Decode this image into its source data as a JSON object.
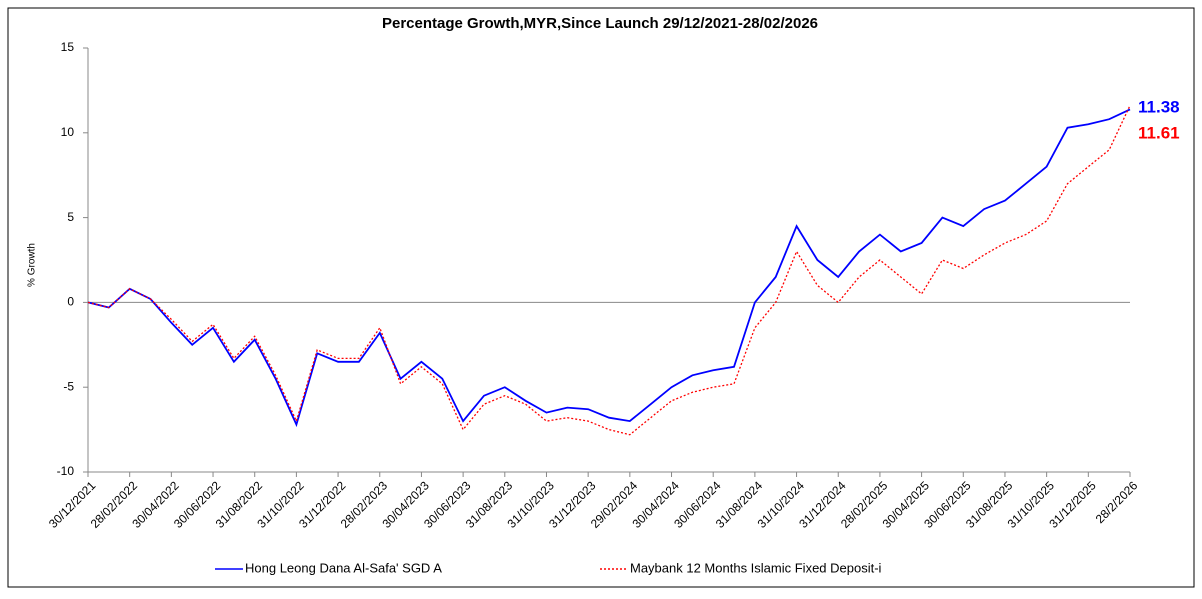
{
  "chart_data": {
    "type": "line",
    "title": "Percentage Growth,MYR,Since Launch 29/12/2021-28/02/2026",
    "y_label": "% Growth",
    "categories": [
      "30/12/2021",
      null,
      "28/02/2022",
      null,
      "30/04/2022",
      null,
      "30/06/2022",
      null,
      "31/08/2022",
      null,
      "31/10/2022",
      null,
      "31/12/2022",
      null,
      "28/02/2023",
      null,
      "30/04/2023",
      null,
      "30/06/2023",
      null,
      "31/08/2023",
      null,
      "31/10/2023",
      null,
      "31/12/2023",
      null,
      "29/02/2024",
      null,
      "30/04/2024",
      null,
      "30/06/2024",
      null,
      "31/08/2024",
      null,
      "31/10/2024",
      null,
      "31/12/2024",
      null,
      "28/02/2025",
      null,
      "30/04/2025",
      null,
      "30/06/2025",
      null,
      "31/08/2025",
      null,
      "31/10/2025",
      null,
      "31/12/2025",
      null,
      "28/2/2026"
    ],
    "series": [
      {
        "name": "Hong Leong Dana Al-Safa' SGD A",
        "color": "#0000ff",
        "style": "solid",
        "end_label": "11.38",
        "values": [
          0,
          -0.3,
          0.8,
          0.2,
          -1.2,
          -2.5,
          -1.5,
          -3.5,
          -2.2,
          -4.5,
          -7.2,
          -3,
          -3.5,
          -3.5,
          -1.8,
          -4.5,
          -3.5,
          -4.5,
          -7,
          -5.5,
          -5,
          -5.8,
          -6.5,
          -6.2,
          -6.3,
          -6.8,
          -7,
          -6,
          -5,
          -4.3,
          -4,
          -3.8,
          0,
          1.5,
          4.5,
          2.5,
          1.5,
          3,
          4,
          3,
          3.5,
          5,
          4.5,
          5.5,
          6,
          7,
          8,
          10.3,
          10.5,
          10.8,
          11.38
        ]
      },
      {
        "name": "Maybank 12 Months Islamic Fixed Deposit-i",
        "color": "#ff0000",
        "style": "dotted",
        "end_label": "11.61",
        "values": [
          0,
          -0.3,
          0.8,
          0.2,
          -1,
          -2.3,
          -1.3,
          -3.3,
          -2,
          -4.3,
          -7,
          -2.8,
          -3.3,
          -3.3,
          -1.5,
          -4.8,
          -3.8,
          -4.8,
          -7.5,
          -6,
          -5.5,
          -6,
          -7,
          -6.8,
          -7,
          -7.5,
          -7.8,
          -6.8,
          -5.8,
          -5.3,
          -5,
          -4.8,
          -1.5,
          0,
          3,
          1,
          0,
          1.5,
          2.5,
          1.5,
          0.5,
          2.5,
          2,
          2.8,
          3.5,
          4,
          4.8,
          7,
          8,
          9,
          11.61
        ]
      }
    ],
    "ylim": [
      -10,
      15
    ],
    "yticks": [
      -10,
      -5,
      0,
      5,
      10,
      15
    ],
    "grid": false,
    "legend": "bottom"
  }
}
